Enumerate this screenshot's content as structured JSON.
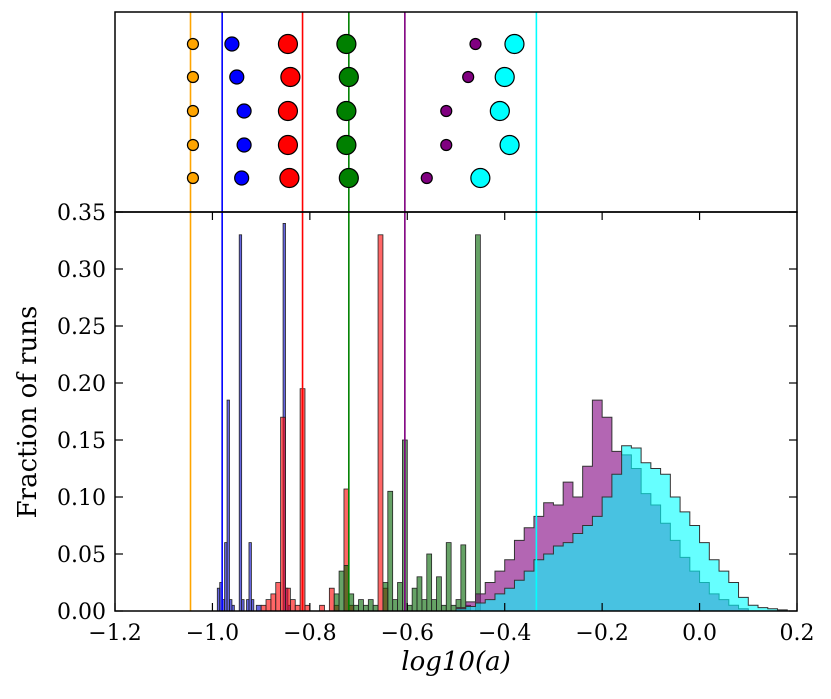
{
  "chart_data": {
    "type": "bar",
    "title": "",
    "xlabel": "log10(a)",
    "ylabel": "Fraction of runs",
    "xlim": [
      -1.2,
      0.2
    ],
    "ylim": [
      0,
      0.35
    ],
    "grid": false,
    "legend": "none",
    "x_ticks": [
      -1.2,
      -1.0,
      -0.8,
      -0.6,
      -0.4,
      -0.2,
      0.0,
      0.2
    ],
    "x_tick_labels": [
      "−1.2",
      "−1.0",
      "−0.8",
      "−0.6",
      "−0.4",
      "−0.2",
      "0.0",
      "0.2"
    ],
    "y_ticks": [
      0.0,
      0.05,
      0.1,
      0.15,
      0.2,
      0.25,
      0.3,
      0.35
    ],
    "y_tick_labels": [
      "0.00",
      "0.05",
      "0.10",
      "0.15",
      "0.20",
      "0.25",
      "0.30",
      "0.35"
    ],
    "vlines": [
      {
        "x": -1.045,
        "color": "#FFA500"
      },
      {
        "x": -0.98,
        "color": "#0000FF"
      },
      {
        "x": -0.815,
        "color": "#FF0000"
      },
      {
        "x": -0.72,
        "color": "#008000"
      },
      {
        "x": -0.605,
        "color": "#800080"
      },
      {
        "x": -0.335,
        "color": "#00FFFF"
      }
    ],
    "top_panel_markers": [
      {
        "color": "#FFA500",
        "size": "small",
        "x": [
          -1.04,
          -1.04,
          -1.04,
          -1.04,
          -1.04
        ]
      },
      {
        "color": "#0000FF",
        "size": "medium",
        "x": [
          -0.96,
          -0.95,
          -0.935,
          -0.935,
          -0.94
        ]
      },
      {
        "color": "#FF0000",
        "size": "large",
        "x": [
          -0.845,
          -0.84,
          -0.845,
          -0.845,
          -0.842
        ]
      },
      {
        "color": "#008000",
        "size": "large",
        "x": [
          -0.725,
          -0.72,
          -0.725,
          -0.725,
          -0.72
        ]
      },
      {
        "color": "#800080",
        "size": "small",
        "x": [
          -0.46,
          -0.475,
          -0.52,
          -0.52,
          -0.56
        ]
      },
      {
        "color": "#00FFFF",
        "size": "large",
        "x": [
          -0.38,
          -0.4,
          -0.41,
          -0.39,
          -0.45
        ]
      }
    ],
    "series": [
      {
        "color": "#0000CC",
        "style": "bars",
        "bins": [
          [
            -0.99,
            -0.985,
            0.02
          ],
          [
            -0.985,
            -0.98,
            0.025
          ],
          [
            -0.98,
            -0.975,
            0.01
          ],
          [
            -0.975,
            -0.97,
            0.06
          ],
          [
            -0.97,
            -0.965,
            0.185
          ],
          [
            -0.965,
            -0.96,
            0.01
          ],
          [
            -0.96,
            -0.955,
            0.005
          ],
          [
            -0.945,
            -0.94,
            0.33
          ],
          [
            -0.94,
            -0.935,
            0.01
          ],
          [
            -0.93,
            -0.925,
            0.01
          ],
          [
            -0.925,
            -0.92,
            0.06
          ],
          [
            -0.92,
            -0.915,
            0.01
          ],
          [
            -0.91,
            -0.9,
            0.005
          ],
          [
            -0.855,
            -0.85,
            0.34
          ],
          [
            -0.85,
            -0.845,
            0.02
          ],
          [
            -0.845,
            -0.84,
            0.005
          ]
        ]
      },
      {
        "color": "#FF0000",
        "style": "bars",
        "bins": [
          [
            -0.9,
            -0.89,
            0.005
          ],
          [
            -0.89,
            -0.88,
            0.01
          ],
          [
            -0.88,
            -0.87,
            0.015
          ],
          [
            -0.87,
            -0.86,
            0.025
          ],
          [
            -0.86,
            -0.85,
            0.17
          ],
          [
            -0.85,
            -0.84,
            0.02
          ],
          [
            -0.84,
            -0.83,
            0.01
          ],
          [
            -0.83,
            -0.82,
            0.005
          ],
          [
            -0.82,
            -0.81,
            0.195
          ],
          [
            -0.81,
            -0.8,
            0.005
          ],
          [
            -0.78,
            -0.77,
            0.005
          ],
          [
            -0.76,
            -0.75,
            0.02
          ],
          [
            -0.75,
            -0.74,
            0.005
          ],
          [
            -0.73,
            -0.72,
            0.107
          ],
          [
            -0.72,
            -0.71,
            0.005
          ],
          [
            -0.66,
            -0.65,
            0.33
          ],
          [
            -0.65,
            -0.64,
            0.02
          ]
        ]
      },
      {
        "color": "#006400",
        "style": "bars",
        "bins": [
          [
            -0.75,
            -0.74,
            0.015
          ],
          [
            -0.74,
            -0.73,
            0.035
          ],
          [
            -0.73,
            -0.72,
            0.04
          ],
          [
            -0.72,
            -0.71,
            0.015
          ],
          [
            -0.71,
            -0.7,
            0.005
          ],
          [
            -0.7,
            -0.69,
            0.01
          ],
          [
            -0.69,
            -0.68,
            0.005
          ],
          [
            -0.68,
            -0.67,
            0.01
          ],
          [
            -0.67,
            -0.66,
            0.005
          ],
          [
            -0.65,
            -0.64,
            0.025
          ],
          [
            -0.64,
            -0.63,
            0.105
          ],
          [
            -0.63,
            -0.62,
            0.01
          ],
          [
            -0.62,
            -0.61,
            0.025
          ],
          [
            -0.61,
            -0.6,
            0.15
          ],
          [
            -0.6,
            -0.59,
            0.005
          ],
          [
            -0.59,
            -0.58,
            0.02
          ],
          [
            -0.58,
            -0.57,
            0.03
          ],
          [
            -0.57,
            -0.56,
            0.01
          ],
          [
            -0.56,
            -0.55,
            0.05
          ],
          [
            -0.55,
            -0.54,
            0.01
          ],
          [
            -0.54,
            -0.53,
            0.03
          ],
          [
            -0.53,
            -0.52,
            0.005
          ],
          [
            -0.52,
            -0.51,
            0.06
          ],
          [
            -0.51,
            -0.5,
            0.005
          ],
          [
            -0.5,
            -0.49,
            0.01
          ],
          [
            -0.49,
            -0.48,
            0.058
          ],
          [
            -0.48,
            -0.47,
            0.005
          ],
          [
            -0.46,
            -0.45,
            0.33
          ]
        ]
      },
      {
        "color": "#800080",
        "style": "step",
        "bins": [
          [
            -0.5,
            -0.48,
            0.003
          ],
          [
            -0.48,
            -0.46,
            0.008
          ],
          [
            -0.46,
            -0.44,
            0.015
          ],
          [
            -0.44,
            -0.42,
            0.025
          ],
          [
            -0.42,
            -0.4,
            0.035
          ],
          [
            -0.4,
            -0.38,
            0.045
          ],
          [
            -0.38,
            -0.36,
            0.062
          ],
          [
            -0.36,
            -0.34,
            0.073
          ],
          [
            -0.34,
            -0.32,
            0.083
          ],
          [
            -0.32,
            -0.3,
            0.095
          ],
          [
            -0.3,
            -0.28,
            0.093
          ],
          [
            -0.28,
            -0.26,
            0.113
          ],
          [
            -0.26,
            -0.24,
            0.1
          ],
          [
            -0.24,
            -0.22,
            0.127
          ],
          [
            -0.22,
            -0.2,
            0.185
          ],
          [
            -0.2,
            -0.18,
            0.17
          ],
          [
            -0.18,
            -0.16,
            0.14
          ],
          [
            -0.16,
            -0.14,
            0.137
          ],
          [
            -0.14,
            -0.12,
            0.125
          ],
          [
            -0.12,
            -0.1,
            0.103
          ],
          [
            -0.1,
            -0.08,
            0.093
          ],
          [
            -0.08,
            -0.06,
            0.077
          ],
          [
            -0.06,
            -0.04,
            0.062
          ],
          [
            -0.04,
            -0.02,
            0.047
          ],
          [
            -0.02,
            0.0,
            0.035
          ],
          [
            0.0,
            0.02,
            0.025
          ],
          [
            0.02,
            0.04,
            0.015
          ],
          [
            0.04,
            0.06,
            0.01
          ],
          [
            0.06,
            0.08,
            0.005
          ],
          [
            0.08,
            0.1,
            0.002
          ]
        ]
      },
      {
        "color": "#00FFFF",
        "style": "step",
        "bins": [
          [
            -0.5,
            -0.48,
            0.002
          ],
          [
            -0.48,
            -0.46,
            0.004
          ],
          [
            -0.46,
            -0.44,
            0.007
          ],
          [
            -0.44,
            -0.42,
            0.01
          ],
          [
            -0.42,
            -0.4,
            0.015
          ],
          [
            -0.4,
            -0.38,
            0.02
          ],
          [
            -0.38,
            -0.36,
            0.027
          ],
          [
            -0.36,
            -0.34,
            0.035
          ],
          [
            -0.34,
            -0.32,
            0.045
          ],
          [
            -0.32,
            -0.3,
            0.05
          ],
          [
            -0.3,
            -0.28,
            0.057
          ],
          [
            -0.28,
            -0.26,
            0.06
          ],
          [
            -0.26,
            -0.24,
            0.068
          ],
          [
            -0.24,
            -0.22,
            0.075
          ],
          [
            -0.22,
            -0.2,
            0.083
          ],
          [
            -0.2,
            -0.18,
            0.1
          ],
          [
            -0.18,
            -0.16,
            0.12
          ],
          [
            -0.16,
            -0.14,
            0.145
          ],
          [
            -0.14,
            -0.12,
            0.143
          ],
          [
            -0.12,
            -0.1,
            0.13
          ],
          [
            -0.1,
            -0.08,
            0.125
          ],
          [
            -0.08,
            -0.06,
            0.12
          ],
          [
            -0.06,
            -0.04,
            0.1
          ],
          [
            -0.04,
            -0.02,
            0.087
          ],
          [
            -0.02,
            0.0,
            0.075
          ],
          [
            0.0,
            0.02,
            0.06
          ],
          [
            0.02,
            0.04,
            0.045
          ],
          [
            0.04,
            0.06,
            0.035
          ],
          [
            0.06,
            0.08,
            0.025
          ],
          [
            0.08,
            0.1,
            0.012
          ],
          [
            0.1,
            0.12,
            0.005
          ],
          [
            0.12,
            0.14,
            0.003
          ],
          [
            0.14,
            0.16,
            0.002
          ],
          [
            0.16,
            0.18,
            0.001
          ]
        ]
      }
    ]
  }
}
